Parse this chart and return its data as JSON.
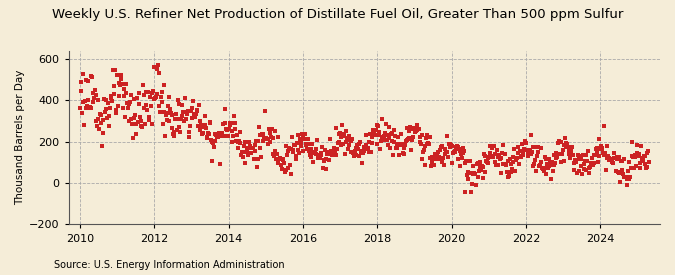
{
  "title": "Weekly U.S. Refiner Net Production of Distillate Fuel Oil, Greater Than 500 ppm Sulfur",
  "ylabel": "Thousand Barrels per Day",
  "source": "Source: U.S. Energy Information Administration",
  "xlim": [
    2009.7,
    2025.6
  ],
  "ylim": [
    -200,
    640
  ],
  "yticks": [
    -200,
    0,
    200,
    400,
    600
  ],
  "xticks": [
    2010,
    2012,
    2014,
    2016,
    2018,
    2020,
    2022,
    2024
  ],
  "background_color": "#f5edd8",
  "plot_bg_color": "#f5edd8",
  "dot_color": "#cc2222",
  "dot_size": 5,
  "title_fontsize": 9.5,
  "label_fontsize": 7.5,
  "tick_fontsize": 8,
  "source_fontsize": 7
}
